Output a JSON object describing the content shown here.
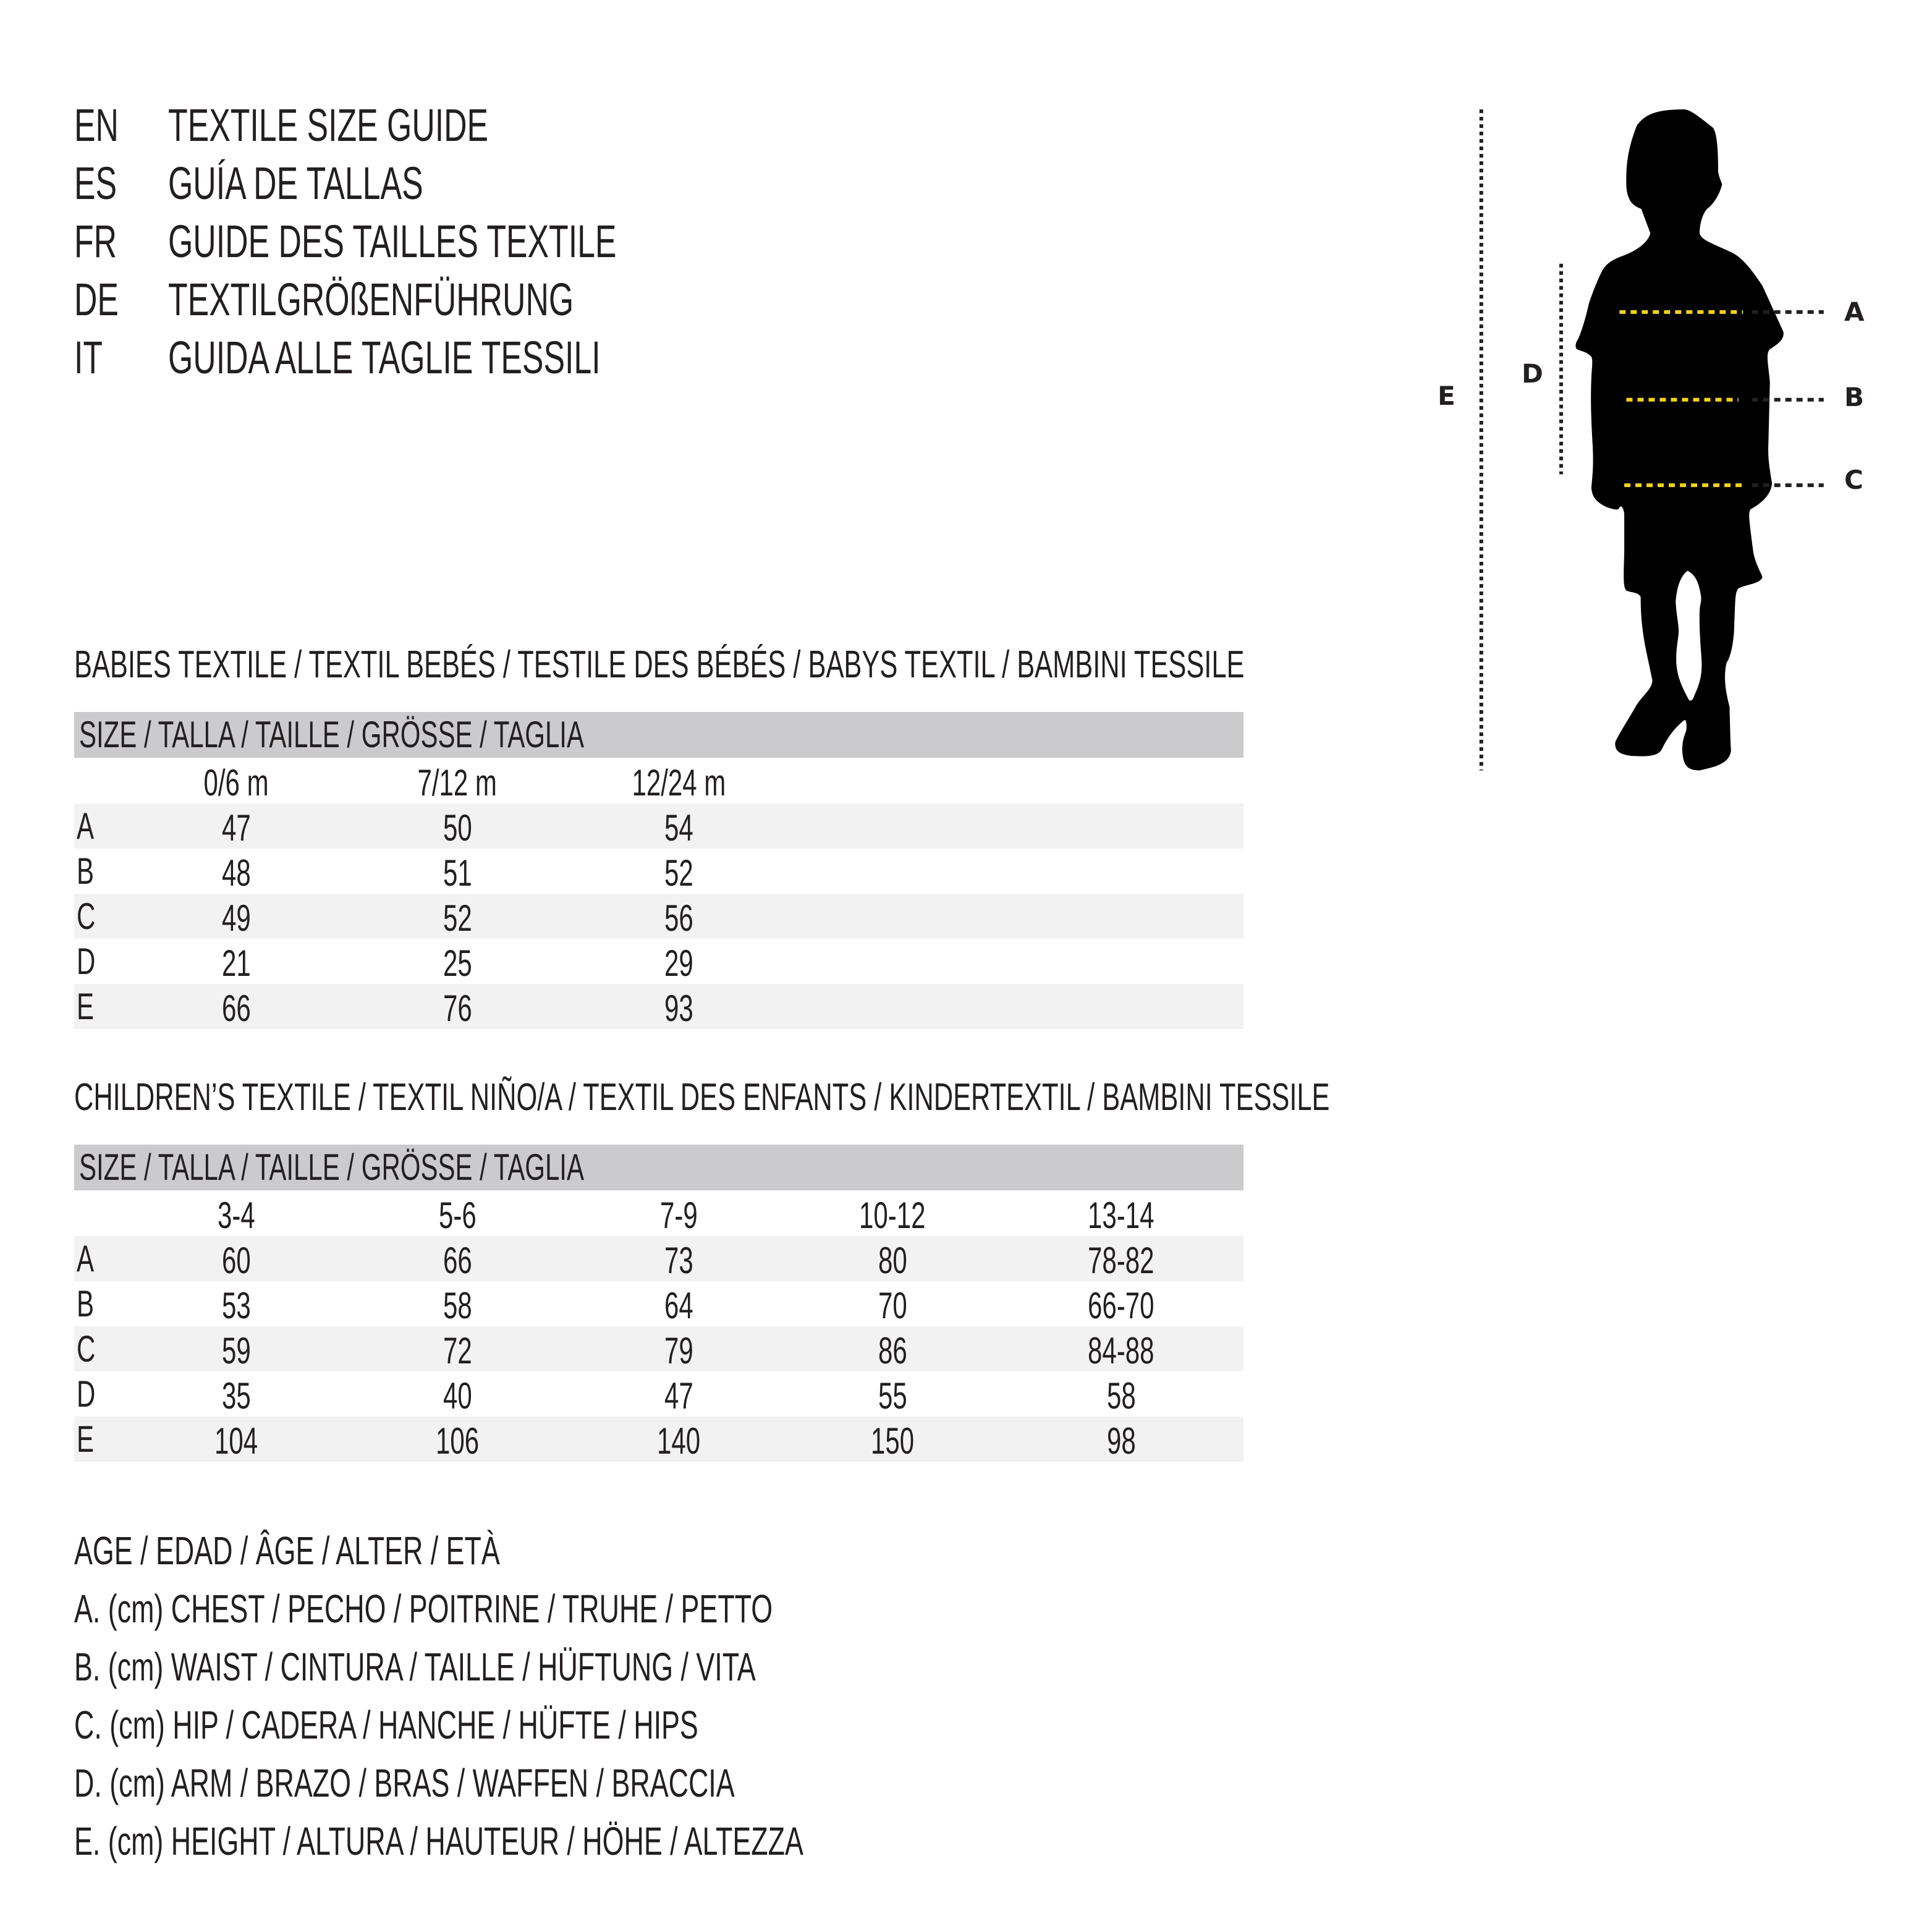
{
  "header": [
    {
      "code": "EN",
      "title": "TEXTILE SIZE GUIDE"
    },
    {
      "code": "ES",
      "title": "GUÍA DE TALLAS"
    },
    {
      "code": "FR",
      "title": "GUIDE DES TAILLES TEXTILE"
    },
    {
      "code": "DE",
      "title": "TEXTILGRÖßENFÜHRUNG"
    },
    {
      "code": "IT",
      "title": "GUIDA ALLE TAGLIE TESSILI"
    }
  ],
  "babies": {
    "title": "BABIES TEXTILE / TEXTIL BEBÉS / TESTILE DES BÉBÉS / BABYS TEXTIL / BAMBINI TESSILE",
    "size_header": "SIZE / TALLA / TAILLE / GRÖSSE / TAGLIA",
    "columns": [
      "0/6 m",
      "7/12 m",
      "12/24 m"
    ],
    "rows": [
      {
        "label": "A",
        "values": [
          "47",
          "50",
          "54"
        ]
      },
      {
        "label": "B",
        "values": [
          "48",
          "51",
          "52"
        ]
      },
      {
        "label": "C",
        "values": [
          "49",
          "52",
          "56"
        ]
      },
      {
        "label": "D",
        "values": [
          "21",
          "25",
          "29"
        ]
      },
      {
        "label": "E",
        "values": [
          "66",
          "76",
          "93"
        ]
      }
    ]
  },
  "children": {
    "title": "CHILDREN’S TEXTILE / TEXTIL NIÑO/A / TEXTIL DES ENFANTS / KINDERTEXTIL / BAMBINI TESSILE",
    "size_header": "SIZE / TALLA / TAILLE / GRÖSSE / TAGLIA",
    "columns": [
      "3-4",
      "5-6",
      "7-9",
      "10-12",
      "13-14"
    ],
    "rows": [
      {
        "label": "A",
        "values": [
          "60",
          "66",
          "73",
          "80",
          "78-82"
        ]
      },
      {
        "label": "B",
        "values": [
          "53",
          "58",
          "64",
          "70",
          "66-70"
        ]
      },
      {
        "label": "C",
        "values": [
          "59",
          "72",
          "79",
          "86",
          "84-88"
        ]
      },
      {
        "label": "D",
        "values": [
          "35",
          "40",
          "47",
          "55",
          "58"
        ]
      },
      {
        "label": "E",
        "values": [
          "104",
          "106",
          "140",
          "150",
          "98"
        ]
      }
    ]
  },
  "legend": [
    "AGE / EDAD / ÂGE / ALTER / ETÀ",
    "A. (cm) CHEST / PECHO / POITRINE / TRUHE / PETTO",
    "B. (cm) WAIST / CINTURA / TAILLE / HÜFTUNG / VITA",
    "C. (cm) HIP / CADERA / HANCHE / HÜFTE / HIPS",
    "D. (cm) ARM / BRAZO / BRAS / WAFFEN / BRACCIA",
    "E. (cm) HEIGHT / ALTURA / HAUTEUR / HÖHE / ALTEZZA"
  ],
  "figure": {
    "labels": {
      "A": "A",
      "B": "B",
      "C": "C",
      "D": "D",
      "E": "E"
    },
    "colors": {
      "silhouette": "#000000",
      "measure_line": "#f2d21b",
      "guide_line": "#231f20",
      "header_bar": "#cbcbcd",
      "row_band": "#f2f2f2"
    }
  }
}
